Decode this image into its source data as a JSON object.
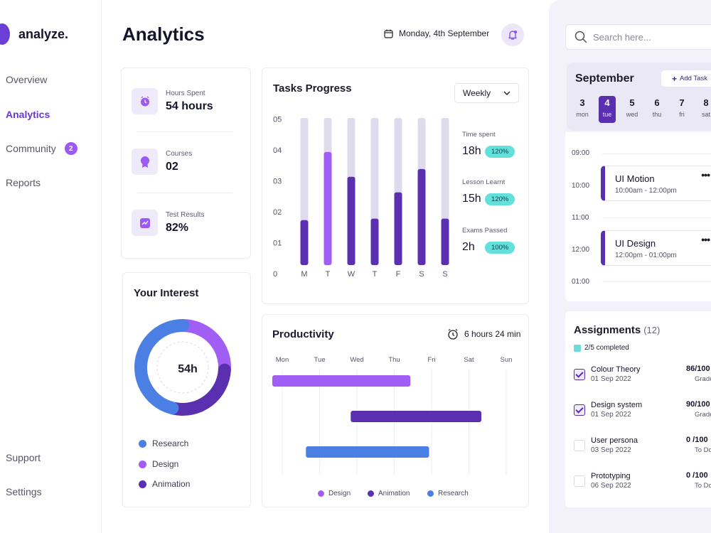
{
  "app": {
    "name": "analyze."
  },
  "sidebar": {
    "items": [
      {
        "label": "Overview"
      },
      {
        "label": "Analytics"
      },
      {
        "label": "Community",
        "badge": "2"
      },
      {
        "label": "Reports"
      }
    ],
    "bottom": [
      {
        "label": "Support"
      },
      {
        "label": "Settings"
      }
    ]
  },
  "header": {
    "title": "Analytics",
    "date": "Monday, 4th September"
  },
  "stats": [
    {
      "label": "Hours Spent",
      "value": "54 hours",
      "icon": "clock-icon"
    },
    {
      "label": "Courses",
      "value": "02",
      "icon": "badge-icon"
    },
    {
      "label": "Test Results",
      "value": "82%",
      "icon": "trend-icon"
    }
  ],
  "interest": {
    "title": "Your Interest",
    "center": "54h",
    "legend": [
      {
        "label": "Research",
        "color": "#4c7fe3"
      },
      {
        "label": "Design",
        "color": "#a15ef5"
      },
      {
        "label": "Animation",
        "color": "#5a2fb0"
      }
    ]
  },
  "tasks": {
    "title": "Tasks Progress",
    "period": "Weekly",
    "side": [
      {
        "label": "Time spent",
        "value": "18h",
        "pill": "120%"
      },
      {
        "label": "Lesson Learnt",
        "value": "15h",
        "pill": "120%"
      },
      {
        "label": "Exams Passed",
        "value": "2h",
        "pill": "100%"
      }
    ]
  },
  "productivity": {
    "title": "Productivity",
    "time": "6 hours 24 min",
    "legend": [
      {
        "label": "Design",
        "color": "#a15ef5"
      },
      {
        "label": "Animation",
        "color": "#5a2fb0"
      },
      {
        "label": "Research",
        "color": "#4c7fe3"
      }
    ]
  },
  "chart_data": [
    {
      "type": "bar",
      "categories": [
        "M",
        "T",
        "W",
        "T",
        "F",
        "S",
        "S"
      ],
      "values": [
        1.45,
        3.65,
        2.85,
        1.5,
        2.35,
        3.1,
        1.5
      ],
      "max": 4.75,
      "yticks": [
        "0",
        "01",
        "02",
        "03",
        "04",
        "05"
      ],
      "highlight_index": 1,
      "colors": {
        "bar": "#5a2fb0",
        "highlight": "#a15ef5",
        "track": "#dfdbec"
      }
    },
    {
      "type": "bar",
      "orientation": "horizontal-range",
      "categories": [
        "Mon",
        "Tue",
        "Wed",
        "Thu",
        "Fri",
        "Sat",
        "Sun"
      ],
      "series": [
        {
          "name": "Design",
          "start": 0,
          "end": 3.7,
          "color": "#a15ef5"
        },
        {
          "name": "Animation",
          "start": 2.1,
          "end": 5.6,
          "color": "#5a2fb0"
        },
        {
          "name": "Research",
          "start": 0.9,
          "end": 4.2,
          "color": "#4c7fe3"
        }
      ]
    },
    {
      "type": "pie",
      "donut": true,
      "series": [
        {
          "name": "Research",
          "value": 47,
          "color": "#4c7fe3"
        },
        {
          "name": "Design",
          "value": 25,
          "color": "#a15ef5"
        },
        {
          "name": "Animation",
          "value": 28,
          "color": "#5a2fb0"
        }
      ]
    }
  ],
  "search": {
    "placeholder": "Search here..."
  },
  "calendar": {
    "month": "September",
    "add_label": "Add Task",
    "days": [
      {
        "n": "3",
        "d": "mon"
      },
      {
        "n": "4",
        "d": "tue",
        "selected": true
      },
      {
        "n": "5",
        "d": "wed"
      },
      {
        "n": "6",
        "d": "thu"
      },
      {
        "n": "7",
        "d": "fri"
      },
      {
        "n": "8",
        "d": "sat"
      }
    ]
  },
  "schedule": {
    "times": [
      "09:00",
      "10:00",
      "11:00",
      "12:00",
      "01:00"
    ],
    "events": [
      {
        "title": "UI Motion",
        "time": "10:00am - 12:00pm",
        "more": "•••"
      },
      {
        "title": "UI Design",
        "time": "12:00pm - 01:00pm",
        "more": "•••"
      }
    ]
  },
  "assignments": {
    "title": "Assignments",
    "count": "(12)",
    "completed": "2/5 completed",
    "items": [
      {
        "name": "Colour Theory",
        "date": "01 Sep 2022",
        "grade": "86/100",
        "status": "Grade",
        "done": true
      },
      {
        "name": "Design system",
        "date": "01 Sep 2022",
        "grade": "90/100",
        "status": "Grade",
        "done": true
      },
      {
        "name": "User persona",
        "date": "03 Sep 2022",
        "grade": "0 /100",
        "status": "To Do",
        "done": false
      },
      {
        "name": "Prototyping",
        "date": "06 Sep 2022",
        "grade": "0 /100",
        "status": "To Do",
        "done": false
      }
    ]
  }
}
